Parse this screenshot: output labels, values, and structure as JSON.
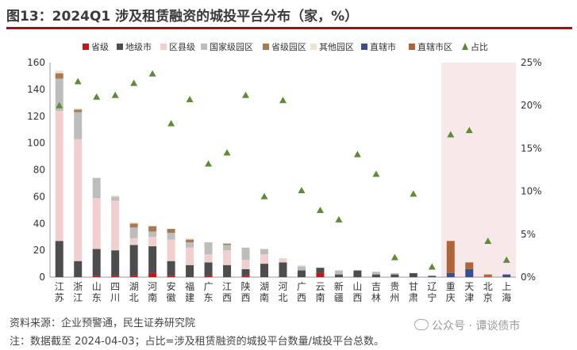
{
  "header": {
    "title": "图13：2024Q1 涉及租赁融资的城投平台分布（家，%）"
  },
  "footer": {
    "source": "资料来源：企业预警通，民生证券研究院",
    "note": "注：数据截至 2024-04-03；占比=涉及租赁融资的城投平台数量/城投平台总数。",
    "watermark": "公众号 · 谭谈债市"
  },
  "colors": {
    "省级": "#c0161c",
    "地级市": "#4d4d4d",
    "区县级": "#f2cfcf",
    "国家级园区": "#bdbdbd",
    "省级园区": "#a87a52",
    "其他园区": "#efe4cf",
    "直辖市": "#3a4d8c",
    "直辖市区": "#b0643a",
    "占比": "#5f8a3a",
    "highlight": "#f7e9e9",
    "title_rule": "#8b1a1a"
  },
  "chart_data": {
    "type": "bar",
    "stacked": true,
    "categories": [
      "江苏",
      "浙江",
      "山东",
      "四川",
      "湖北",
      "河南",
      "安徽",
      "福建",
      "广东",
      "江西",
      "陕西",
      "湖南",
      "河北",
      "广西",
      "云南",
      "新疆",
      "山西",
      "吉林",
      "贵州",
      "甘肃",
      "辽宁",
      "重庆",
      "天津",
      "北京",
      "上海"
    ],
    "series": [
      {
        "name": "省级",
        "values": [
          0,
          0,
          1,
          1,
          1,
          3,
          1,
          0,
          1,
          0,
          1,
          0,
          0,
          0,
          3,
          0,
          0,
          0,
          0,
          0,
          0,
          0,
          0,
          0,
          0
        ]
      },
      {
        "name": "地级市",
        "values": [
          27,
          12,
          20,
          19,
          23,
          20,
          11,
          9,
          10,
          9,
          5,
          10,
          11,
          5,
          4,
          2,
          5,
          2,
          2,
          3,
          1,
          0,
          0,
          0,
          0
        ]
      },
      {
        "name": "区县级",
        "values": [
          97,
          91,
          38,
          37,
          5,
          7,
          16,
          13,
          6,
          11,
          7,
          7,
          3,
          0,
          0,
          0,
          0,
          0,
          0,
          0,
          0,
          0,
          0,
          0,
          0
        ]
      },
      {
        "name": "国家级园区",
        "values": [
          24,
          20,
          15,
          3,
          8,
          4,
          5,
          4,
          9,
          4,
          9,
          4,
          0,
          3,
          0,
          3,
          0,
          2,
          1,
          0,
          0,
          0,
          0,
          0,
          0
        ]
      },
      {
        "name": "省级园区",
        "values": [
          4,
          2,
          0,
          0,
          3,
          4,
          3,
          2,
          0,
          1,
          0,
          0,
          0,
          0,
          0,
          0,
          0,
          0,
          0,
          0,
          0,
          0,
          0,
          0,
          0
        ]
      },
      {
        "name": "其他园区",
        "values": [
          2,
          1,
          0,
          1,
          1,
          0,
          0,
          1,
          0,
          0,
          0,
          0,
          0,
          1,
          0,
          0,
          0,
          0,
          0,
          0,
          0,
          0,
          0,
          0,
          0
        ]
      },
      {
        "name": "直辖市",
        "values": [
          0,
          0,
          0,
          0,
          0,
          0,
          0,
          0,
          0,
          0,
          0,
          0,
          0,
          0,
          0,
          0,
          0,
          0,
          0,
          0,
          0,
          3,
          6,
          0,
          2
        ]
      },
      {
        "name": "直辖市区",
        "values": [
          0,
          0,
          0,
          0,
          0,
          0,
          0,
          0,
          0,
          0,
          0,
          0,
          0,
          0,
          0,
          0,
          0,
          0,
          0,
          0,
          0,
          24,
          5,
          2,
          0
        ]
      }
    ],
    "share": {
      "name": "占比",
      "unit": "%",
      "values": [
        20.0,
        22.8,
        21.0,
        21.2,
        22.6,
        23.7,
        17.9,
        20.7,
        13.2,
        14.5,
        21.2,
        9.4,
        20.6,
        10.1,
        7.8,
        6.7,
        14.3,
        12.0,
        2.3,
        9.7,
        1.2,
        16.6,
        17.1,
        4.2,
        2.0
      ]
    },
    "y_left": {
      "min": 0,
      "max": 160,
      "ticks": [
        0,
        20,
        40,
        60,
        80,
        100,
        120,
        140,
        160
      ]
    },
    "y_right": {
      "min": 0,
      "max": 25,
      "ticks": [
        "0%",
        "5%",
        "10%",
        "15%",
        "20%",
        "25%"
      ]
    },
    "highlight_categories": [
      "重庆",
      "天津",
      "北京",
      "上海"
    ],
    "legend_position": "top"
  }
}
